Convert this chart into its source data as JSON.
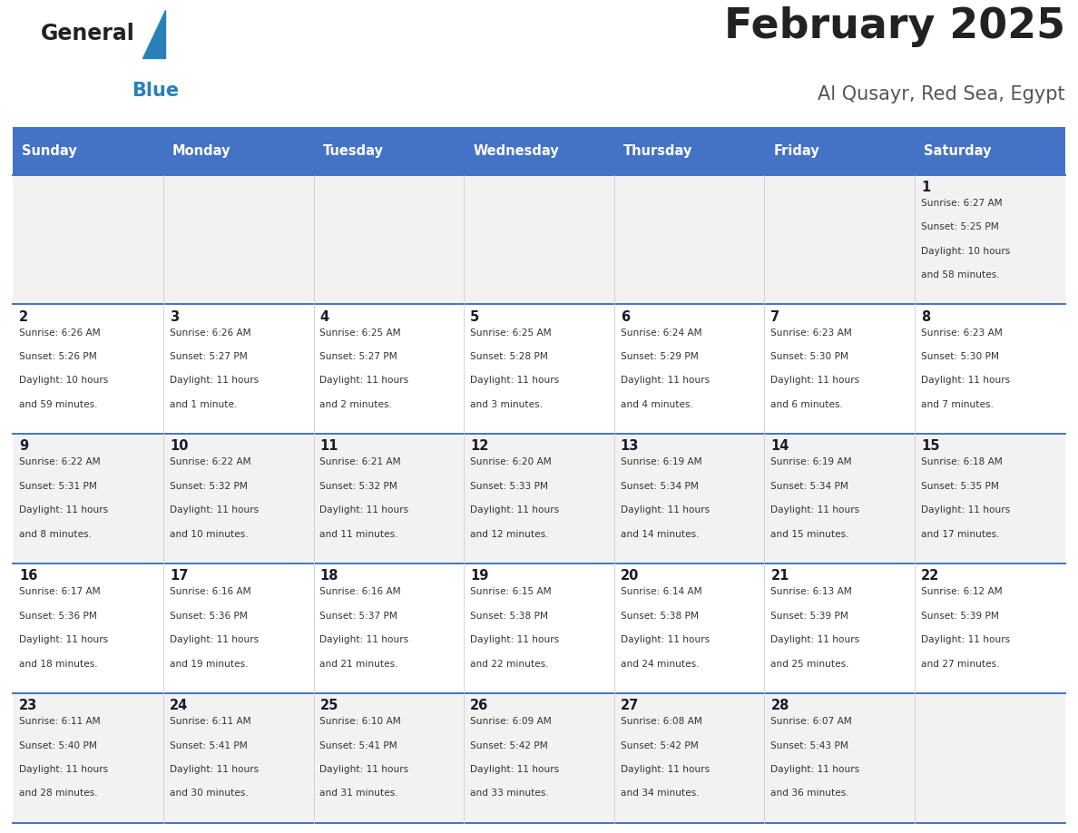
{
  "title": "February 2025",
  "subtitle": "Al Qusayr, Red Sea, Egypt",
  "header_bg": "#4472C4",
  "header_text_color": "#FFFFFF",
  "cell_bg_light": "#F2F2F2",
  "cell_bg_white": "#FFFFFF",
  "day_headers": [
    "Sunday",
    "Monday",
    "Tuesday",
    "Wednesday",
    "Thursday",
    "Friday",
    "Saturday"
  ],
  "title_color": "#222222",
  "subtitle_color": "#555555",
  "day_number_color": "#1a1a2e",
  "info_color": "#333333",
  "border_color": "#4472C4",
  "logo_general_color": "#222222",
  "logo_blue_color": "#2980b9",
  "weeks": [
    [
      {
        "day": null,
        "info": ""
      },
      {
        "day": null,
        "info": ""
      },
      {
        "day": null,
        "info": ""
      },
      {
        "day": null,
        "info": ""
      },
      {
        "day": null,
        "info": ""
      },
      {
        "day": null,
        "info": ""
      },
      {
        "day": 1,
        "info": "Sunrise: 6:27 AM\nSunset: 5:25 PM\nDaylight: 10 hours\nand 58 minutes."
      }
    ],
    [
      {
        "day": 2,
        "info": "Sunrise: 6:26 AM\nSunset: 5:26 PM\nDaylight: 10 hours\nand 59 minutes."
      },
      {
        "day": 3,
        "info": "Sunrise: 6:26 AM\nSunset: 5:27 PM\nDaylight: 11 hours\nand 1 minute."
      },
      {
        "day": 4,
        "info": "Sunrise: 6:25 AM\nSunset: 5:27 PM\nDaylight: 11 hours\nand 2 minutes."
      },
      {
        "day": 5,
        "info": "Sunrise: 6:25 AM\nSunset: 5:28 PM\nDaylight: 11 hours\nand 3 minutes."
      },
      {
        "day": 6,
        "info": "Sunrise: 6:24 AM\nSunset: 5:29 PM\nDaylight: 11 hours\nand 4 minutes."
      },
      {
        "day": 7,
        "info": "Sunrise: 6:23 AM\nSunset: 5:30 PM\nDaylight: 11 hours\nand 6 minutes."
      },
      {
        "day": 8,
        "info": "Sunrise: 6:23 AM\nSunset: 5:30 PM\nDaylight: 11 hours\nand 7 minutes."
      }
    ],
    [
      {
        "day": 9,
        "info": "Sunrise: 6:22 AM\nSunset: 5:31 PM\nDaylight: 11 hours\nand 8 minutes."
      },
      {
        "day": 10,
        "info": "Sunrise: 6:22 AM\nSunset: 5:32 PM\nDaylight: 11 hours\nand 10 minutes."
      },
      {
        "day": 11,
        "info": "Sunrise: 6:21 AM\nSunset: 5:32 PM\nDaylight: 11 hours\nand 11 minutes."
      },
      {
        "day": 12,
        "info": "Sunrise: 6:20 AM\nSunset: 5:33 PM\nDaylight: 11 hours\nand 12 minutes."
      },
      {
        "day": 13,
        "info": "Sunrise: 6:19 AM\nSunset: 5:34 PM\nDaylight: 11 hours\nand 14 minutes."
      },
      {
        "day": 14,
        "info": "Sunrise: 6:19 AM\nSunset: 5:34 PM\nDaylight: 11 hours\nand 15 minutes."
      },
      {
        "day": 15,
        "info": "Sunrise: 6:18 AM\nSunset: 5:35 PM\nDaylight: 11 hours\nand 17 minutes."
      }
    ],
    [
      {
        "day": 16,
        "info": "Sunrise: 6:17 AM\nSunset: 5:36 PM\nDaylight: 11 hours\nand 18 minutes."
      },
      {
        "day": 17,
        "info": "Sunrise: 6:16 AM\nSunset: 5:36 PM\nDaylight: 11 hours\nand 19 minutes."
      },
      {
        "day": 18,
        "info": "Sunrise: 6:16 AM\nSunset: 5:37 PM\nDaylight: 11 hours\nand 21 minutes."
      },
      {
        "day": 19,
        "info": "Sunrise: 6:15 AM\nSunset: 5:38 PM\nDaylight: 11 hours\nand 22 minutes."
      },
      {
        "day": 20,
        "info": "Sunrise: 6:14 AM\nSunset: 5:38 PM\nDaylight: 11 hours\nand 24 minutes."
      },
      {
        "day": 21,
        "info": "Sunrise: 6:13 AM\nSunset: 5:39 PM\nDaylight: 11 hours\nand 25 minutes."
      },
      {
        "day": 22,
        "info": "Sunrise: 6:12 AM\nSunset: 5:39 PM\nDaylight: 11 hours\nand 27 minutes."
      }
    ],
    [
      {
        "day": 23,
        "info": "Sunrise: 6:11 AM\nSunset: 5:40 PM\nDaylight: 11 hours\nand 28 minutes."
      },
      {
        "day": 24,
        "info": "Sunrise: 6:11 AM\nSunset: 5:41 PM\nDaylight: 11 hours\nand 30 minutes."
      },
      {
        "day": 25,
        "info": "Sunrise: 6:10 AM\nSunset: 5:41 PM\nDaylight: 11 hours\nand 31 minutes."
      },
      {
        "day": 26,
        "info": "Sunrise: 6:09 AM\nSunset: 5:42 PM\nDaylight: 11 hours\nand 33 minutes."
      },
      {
        "day": 27,
        "info": "Sunrise: 6:08 AM\nSunset: 5:42 PM\nDaylight: 11 hours\nand 34 minutes."
      },
      {
        "day": 28,
        "info": "Sunrise: 6:07 AM\nSunset: 5:43 PM\nDaylight: 11 hours\nand 36 minutes."
      },
      {
        "day": null,
        "info": ""
      }
    ]
  ]
}
